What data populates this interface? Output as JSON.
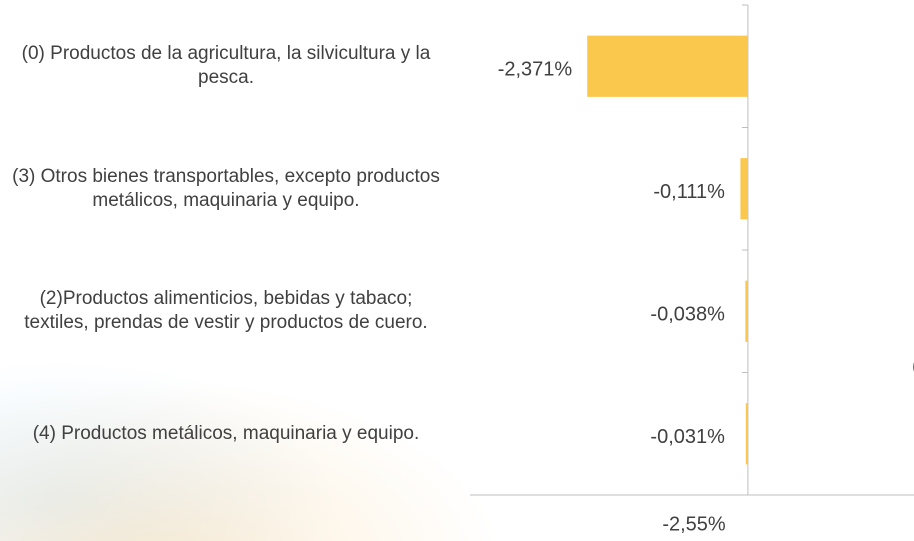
{
  "chart_data": {
    "type": "barh",
    "categories": [
      "(0) Productos de la agricultura, la silvicultura y la pesca.",
      "(3) Otros bienes transportables, excepto productos metálicos, maquinaria y equipo.",
      "(2)Productos alimenticios, bebidas y tabaco; textiles, prendas de vestir y productos de cuero.",
      "(4) Productos metálicos, maquinaria y equipo."
    ],
    "values": [
      -2.371,
      -0.111,
      -0.038,
      -0.031
    ],
    "value_labels": [
      "-2,371%",
      "-0,111%",
      "-0,038%",
      "-0,031%"
    ],
    "color": "#fbc84e",
    "xlim": [
      -4.1,
      2.45
    ],
    "x_label": "-2,55%",
    "annotation": "("
  }
}
